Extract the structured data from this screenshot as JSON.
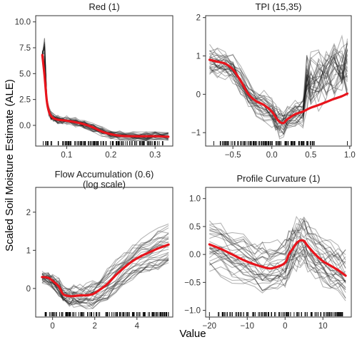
{
  "figure": {
    "xlabel": "Value",
    "ylabel": "Scaled Soil Moisture Estimate (ALE)"
  },
  "colors": {
    "mean_line": "#e8141c",
    "individual_lines": "#1a1a1a",
    "rug": "#000000",
    "frame": "#333333"
  },
  "chart_data": [
    {
      "type": "line",
      "title": "Red (1)",
      "subtitle": "",
      "xlim": [
        0.03,
        0.34
      ],
      "ylim": [
        -2.0,
        10.6
      ],
      "xticks": [
        0.1,
        0.2,
        0.3
      ],
      "xtick_labels": [
        "0.1",
        "0.2",
        "0.3"
      ],
      "yticks": [
        0.0,
        2.5,
        5.0,
        7.5,
        10.0
      ],
      "ytick_labels": [
        "0.0",
        "2.5",
        "5.0",
        "7.5",
        "10.0"
      ],
      "mean": {
        "x": [
          0.045,
          0.05,
          0.055,
          0.06,
          0.065,
          0.07,
          0.08,
          0.09,
          0.1,
          0.12,
          0.14,
          0.16,
          0.18,
          0.2,
          0.22,
          0.25,
          0.28,
          0.3,
          0.33
        ],
        "y": [
          6.8,
          4.8,
          2.4,
          1.3,
          0.9,
          0.7,
          0.55,
          0.5,
          0.45,
          0.3,
          0.1,
          -0.2,
          -0.6,
          -0.85,
          -1.0,
          -1.05,
          -1.05,
          -1.05,
          -1.1
        ]
      },
      "ensemble": {
        "x": [
          0.045,
          0.05,
          0.055,
          0.06,
          0.065,
          0.07,
          0.08,
          0.09,
          0.1,
          0.12,
          0.14,
          0.16,
          0.18,
          0.2,
          0.22,
          0.25,
          0.28,
          0.3,
          0.33
        ],
        "count": 30,
        "seed": 11,
        "noise": 0.35,
        "spread": 0.25,
        "peak": 3.6,
        "peak_x": 0.05
      },
      "rug": {
        "from": 0.045,
        "to": 0.32,
        "count": 120,
        "seed": 3
      }
    },
    {
      "type": "line",
      "title": "TPI (15,35)",
      "subtitle": "",
      "xlim": [
        -0.85,
        1.02
      ],
      "ylim": [
        -1.35,
        2.05
      ],
      "xticks": [
        -0.5,
        0.0,
        0.5,
        1.0
      ],
      "xtick_labels": [
        "−0.5",
        "0.0",
        "0.5",
        "1.0"
      ],
      "yticks": [
        -1,
        0,
        1,
        2
      ],
      "ytick_labels": [
        "−1",
        "0",
        "1",
        "2"
      ],
      "mean": {
        "x": [
          -0.8,
          -0.7,
          -0.6,
          -0.5,
          -0.4,
          -0.3,
          -0.2,
          -0.1,
          0.0,
          0.05,
          0.1,
          0.15,
          0.2,
          0.3,
          0.4,
          0.5,
          0.6,
          0.7,
          0.8,
          0.9,
          0.97
        ],
        "y": [
          0.9,
          0.85,
          0.8,
          0.65,
          0.35,
          0.0,
          -0.18,
          -0.28,
          -0.45,
          -0.6,
          -0.72,
          -0.75,
          -0.65,
          -0.52,
          -0.45,
          -0.35,
          -0.28,
          -0.2,
          -0.12,
          -0.05,
          0.02
        ]
      },
      "ensemble": {
        "x": [
          -0.8,
          -0.7,
          -0.6,
          -0.5,
          -0.4,
          -0.3,
          -0.2,
          -0.1,
          0.0,
          0.05,
          0.1,
          0.15,
          0.2,
          0.3,
          0.4,
          0.45,
          0.5,
          0.6,
          0.7,
          0.8,
          0.9,
          0.97
        ],
        "count": 30,
        "seed": 23,
        "noise": 0.18,
        "spread": 0.45,
        "jump_x": 0.45,
        "jump": 1.0
      },
      "rug": {
        "from": -0.75,
        "to": 0.55,
        "count": 110,
        "seed": 7,
        "extra": [
          0.97
        ]
      }
    },
    {
      "type": "line",
      "title": "Flow Accumulation (0.6)",
      "subtitle": "(log scale)",
      "xlim": [
        -0.8,
        5.7
      ],
      "ylim": [
        -0.75,
        2.65
      ],
      "xticks": [
        0,
        2,
        4
      ],
      "xtick_labels": [
        "0",
        "2",
        "4"
      ],
      "yticks": [
        0,
        1,
        2
      ],
      "ytick_labels": [
        "0",
        "1",
        "2"
      ],
      "mean": {
        "x": [
          -0.5,
          -0.2,
          0.0,
          0.3,
          0.5,
          0.8,
          1.0,
          1.3,
          1.6,
          1.9,
          2.2,
          2.6,
          3.0,
          3.4,
          3.8,
          4.2,
          4.6,
          5.0,
          5.5
        ],
        "y": [
          0.3,
          0.28,
          0.2,
          0.05,
          -0.15,
          -0.2,
          -0.2,
          -0.18,
          -0.18,
          -0.15,
          -0.05,
          0.12,
          0.35,
          0.55,
          0.72,
          0.85,
          0.95,
          1.05,
          1.15
        ]
      },
      "ensemble": {
        "x": [
          -0.5,
          -0.2,
          0.0,
          0.3,
          0.5,
          0.8,
          1.0,
          1.3,
          1.6,
          1.9,
          2.2,
          2.6,
          3.0,
          3.4,
          3.8,
          4.2,
          4.6,
          5.0,
          5.5
        ],
        "count": 30,
        "seed": 37,
        "noise": 0.12,
        "spread": 0.5,
        "spread_grows": true
      },
      "rug": {
        "from": -0.4,
        "to": 5.5,
        "count": 130,
        "seed": 13
      }
    },
    {
      "type": "line",
      "title": "Profile Curvature (1)",
      "subtitle": "",
      "xlim": [
        -21,
        17.5
      ],
      "ylim": [
        -1.12,
        1.2
      ],
      "xticks": [
        -20,
        -10,
        0,
        10
      ],
      "xtick_labels": [
        "−20",
        "−10",
        "0",
        "10"
      ],
      "yticks": [
        -1.0,
        -0.5,
        0.0,
        0.5,
        1.0
      ],
      "ytick_labels": [
        "−1.0",
        "−0.5",
        "0.0",
        "0.5",
        "1.0"
      ],
      "mean": {
        "x": [
          -20,
          -17,
          -14,
          -11,
          -8,
          -6,
          -4,
          -2,
          0,
          1,
          2,
          3,
          4,
          5,
          6,
          8,
          10,
          12,
          14,
          16
        ],
        "y": [
          0.18,
          0.1,
          0.0,
          -0.1,
          -0.18,
          -0.22,
          -0.25,
          -0.22,
          -0.15,
          0.0,
          0.1,
          0.2,
          0.25,
          0.24,
          0.15,
          0.0,
          -0.12,
          -0.2,
          -0.28,
          -0.38
        ]
      },
      "ensemble": {
        "x": [
          -20,
          -17,
          -14,
          -11,
          -8,
          -6,
          -4,
          -2,
          0,
          1,
          2,
          3,
          4,
          5,
          6,
          8,
          10,
          12,
          14,
          16
        ],
        "count": 30,
        "seed": 51,
        "noise": 0.15,
        "spread": 0.65,
        "shrink_x": 0.0
      },
      "rug": {
        "from": -18,
        "to": 16,
        "count": 120,
        "seed": 29,
        "extra": [
          -20.0
        ]
      }
    }
  ]
}
